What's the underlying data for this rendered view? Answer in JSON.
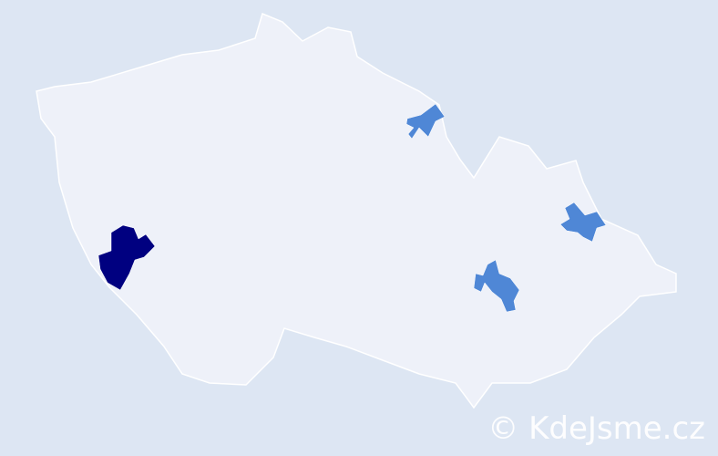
{
  "map": {
    "country_fill": "#eef1f9",
    "border_color": "#ffffff",
    "background": "#dde6f3",
    "highlight_dark": "#000080",
    "highlight_medium": "#4f87d6",
    "regions_highlighted": [
      {
        "level": "dark"
      },
      {
        "level": "medium"
      },
      {
        "level": "medium"
      },
      {
        "level": "medium"
      }
    ]
  },
  "watermark": {
    "text": "© KdeJsme.cz"
  }
}
